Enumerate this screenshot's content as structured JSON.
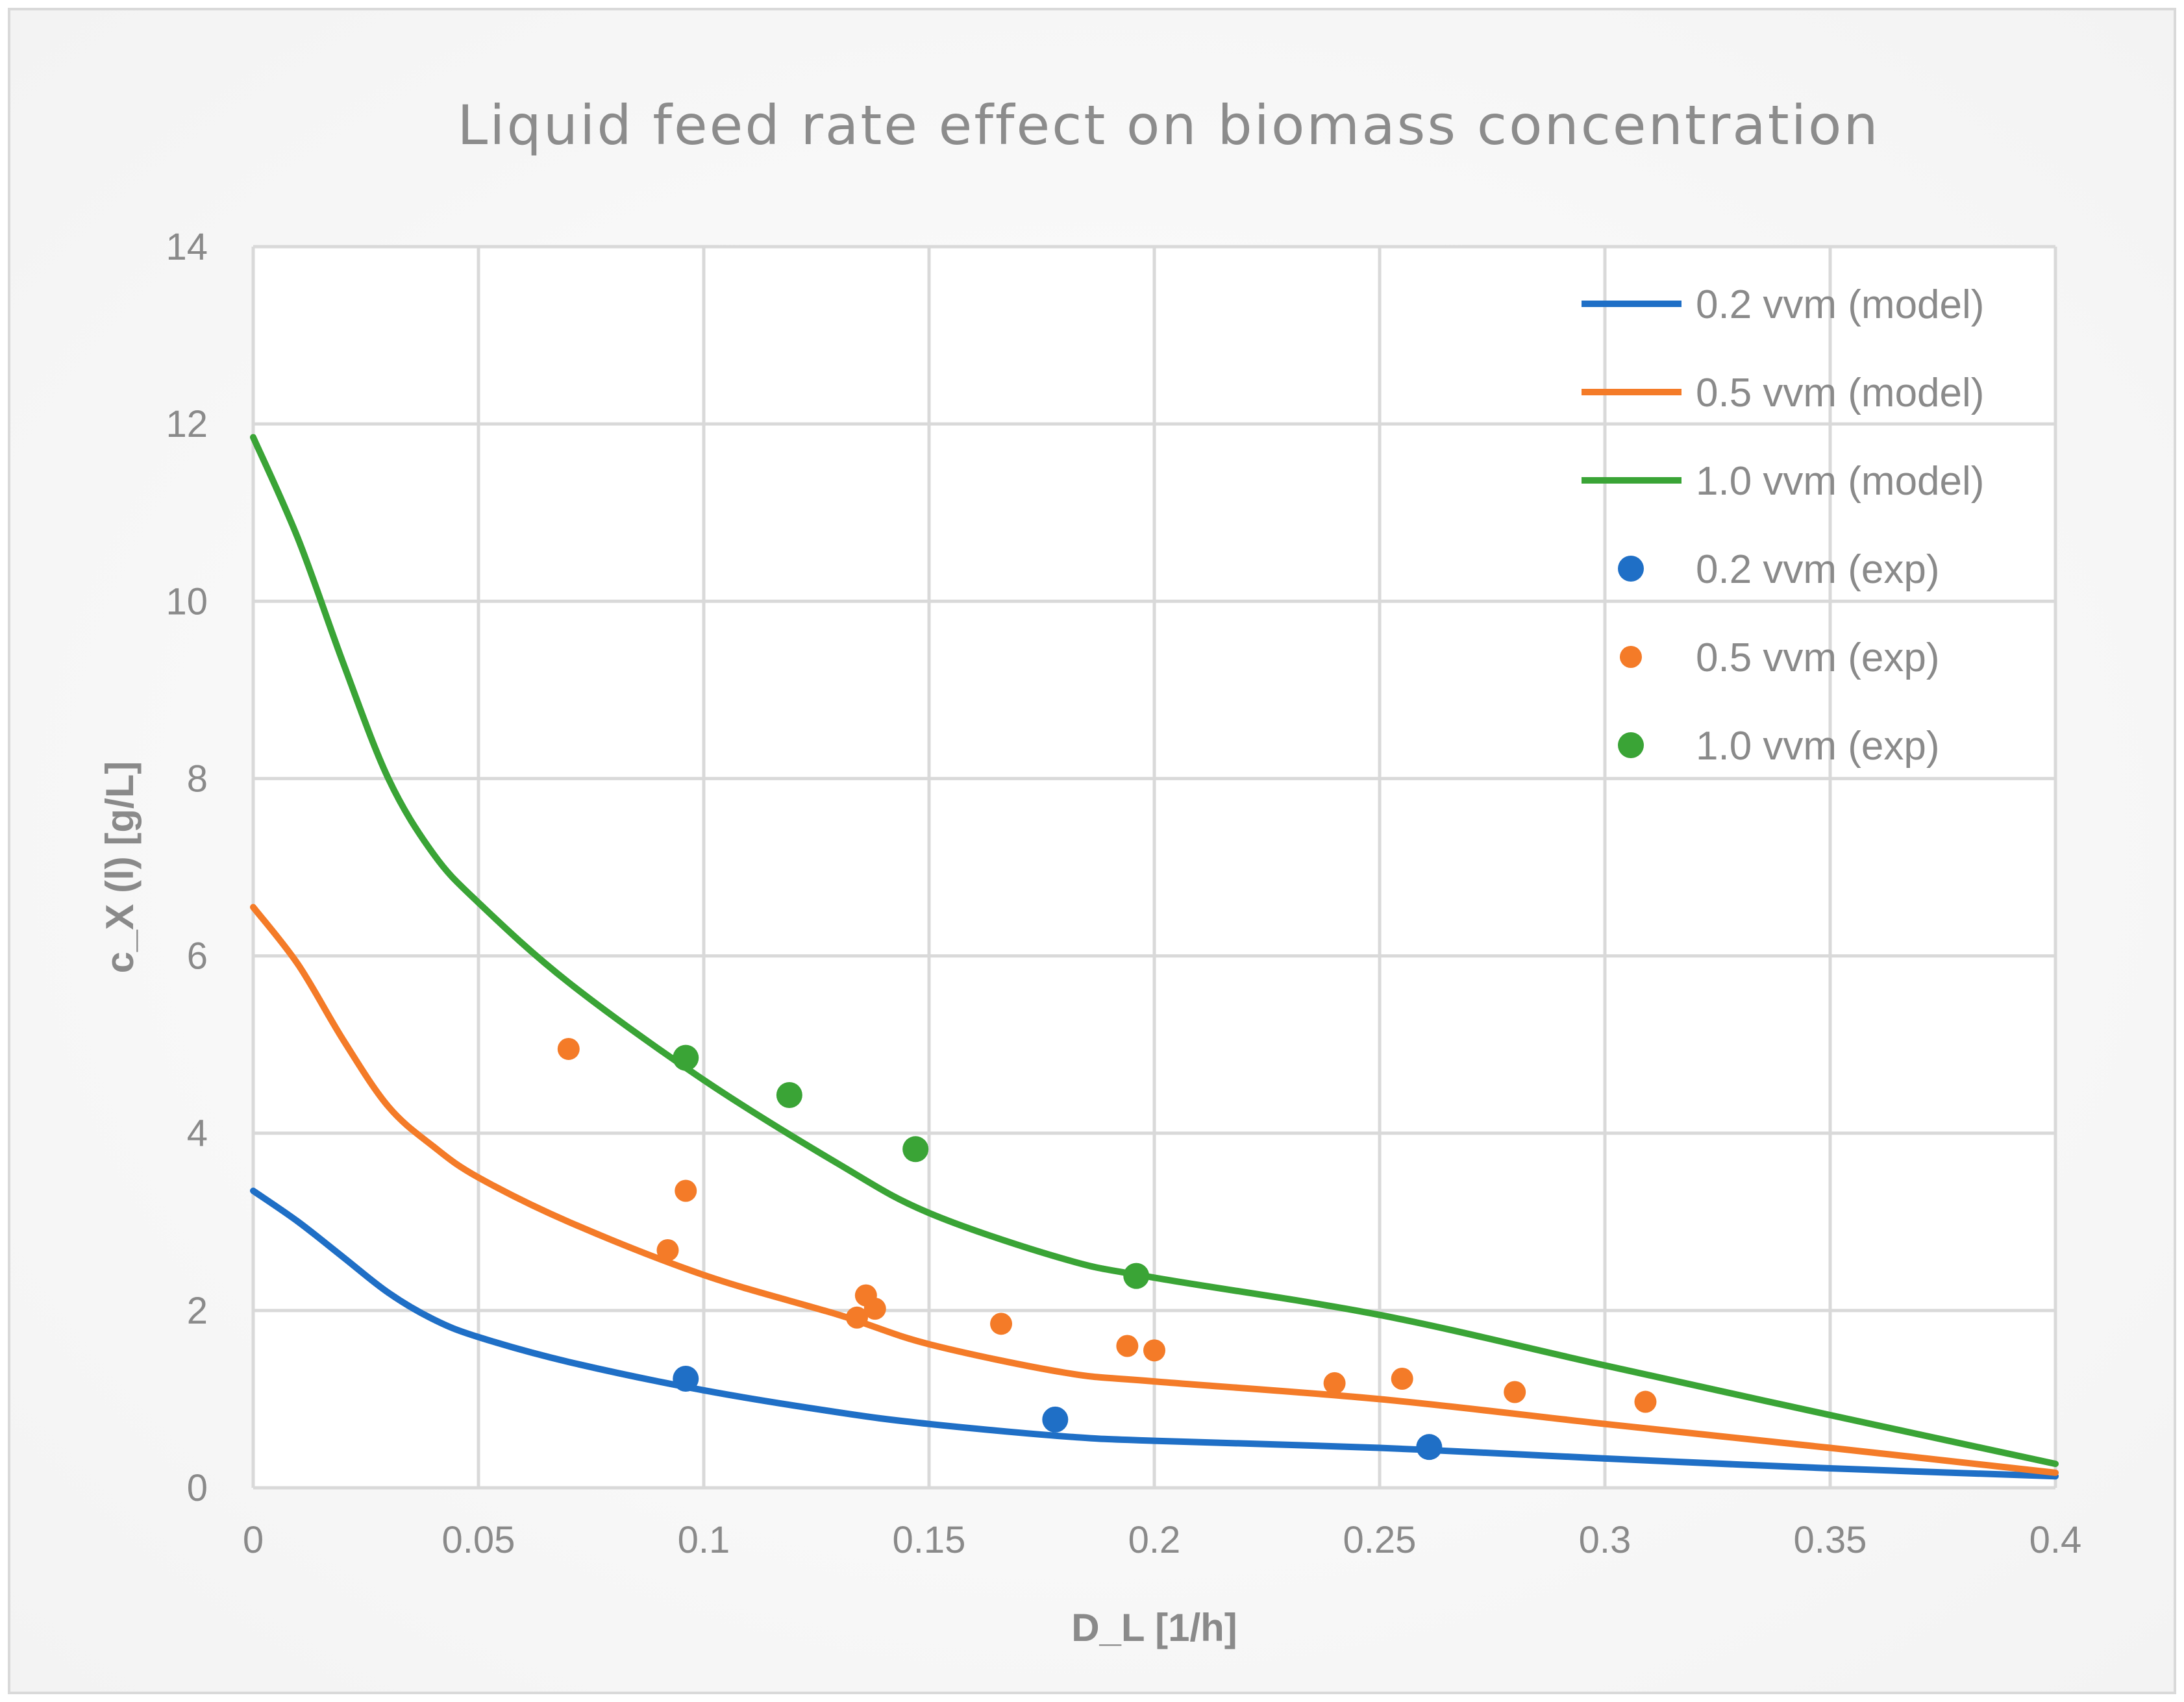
{
  "chart_data": {
    "type": "scatter",
    "title": "Liquid feed rate effect on biomass concentration",
    "xlabel": "D_L [1/h]",
    "ylabel": "c_X (l) [g/L]",
    "xlim": [
      0,
      0.4
    ],
    "ylim": [
      0,
      14
    ],
    "x_ticks": [
      0,
      0.05,
      0.1,
      0.15,
      0.2,
      0.25,
      0.3,
      0.35,
      0.4
    ],
    "y_ticks": [
      0,
      2,
      4,
      6,
      8,
      10,
      12,
      14
    ],
    "x_tick_labels": [
      "0",
      "0.05",
      "0.1",
      "0.15",
      "0.2",
      "0.25",
      "0.3",
      "0.35",
      "0.4"
    ],
    "y_tick_labels": [
      "0",
      "2",
      "4",
      "6",
      "8",
      "10",
      "12",
      "14"
    ],
    "grid": true,
    "legend_position": "top-right",
    "series": [
      {
        "name": "0.2 vvm (model)",
        "kind": "line",
        "color": "#1f6fc6",
        "x": [
          0,
          0.01,
          0.02,
          0.03,
          0.04,
          0.05,
          0.07,
          0.1,
          0.13,
          0.15,
          0.18,
          0.2,
          0.25,
          0.3,
          0.35,
          0.4
        ],
        "y": [
          3.35,
          3.0,
          2.6,
          2.2,
          1.9,
          1.7,
          1.42,
          1.1,
          0.85,
          0.72,
          0.58,
          0.53,
          0.45,
          0.33,
          0.22,
          0.13
        ]
      },
      {
        "name": "0.5 vvm (model)",
        "kind": "line",
        "color": "#f47b28",
        "x": [
          0,
          0.01,
          0.02,
          0.03,
          0.04,
          0.05,
          0.07,
          0.1,
          0.13,
          0.15,
          0.18,
          0.2,
          0.25,
          0.3,
          0.35,
          0.4
        ],
        "y": [
          6.55,
          5.9,
          5.05,
          4.3,
          3.85,
          3.5,
          3.0,
          2.4,
          1.95,
          1.62,
          1.3,
          1.2,
          1.0,
          0.72,
          0.45,
          0.17
        ]
      },
      {
        "name": "1.0 vvm (model)",
        "kind": "line",
        "color": "#3aa436",
        "x": [
          0,
          0.01,
          0.02,
          0.03,
          0.04,
          0.05,
          0.07,
          0.1,
          0.13,
          0.15,
          0.18,
          0.2,
          0.25,
          0.3,
          0.35,
          0.4
        ],
        "y": [
          11.85,
          10.7,
          9.3,
          8.0,
          7.15,
          6.6,
          5.7,
          4.6,
          3.65,
          3.1,
          2.58,
          2.37,
          1.95,
          1.38,
          0.82,
          0.27
        ]
      },
      {
        "name": "0.2 vvm (exp)",
        "kind": "scatter",
        "color": "#1f6fc6",
        "x": [
          0.096,
          0.178,
          0.261
        ],
        "y": [
          1.23,
          0.77,
          0.46
        ]
      },
      {
        "name": "0.5 vvm (exp)",
        "kind": "scatter",
        "color": "#f47b28",
        "x": [
          0.07,
          0.092,
          0.096,
          0.134,
          0.136,
          0.138,
          0.166,
          0.194,
          0.2,
          0.24,
          0.255,
          0.28,
          0.309
        ],
        "y": [
          4.95,
          2.68,
          3.35,
          1.92,
          2.17,
          2.02,
          1.85,
          1.6,
          1.55,
          1.18,
          1.23,
          1.08,
          0.97
        ]
      },
      {
        "name": "1.0 vvm (exp)",
        "kind": "scatter",
        "color": "#3aa436",
        "x": [
          0.096,
          0.119,
          0.147,
          0.196
        ],
        "y": [
          4.85,
          4.43,
          3.82,
          2.39
        ]
      }
    ]
  }
}
